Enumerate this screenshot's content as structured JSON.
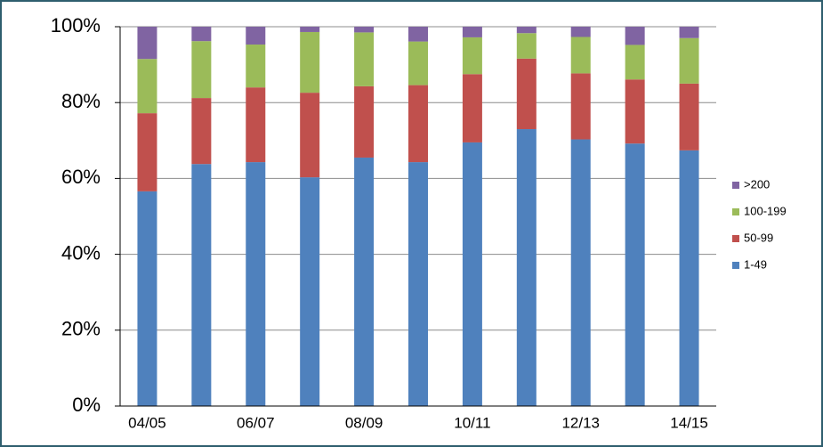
{
  "chart_data": {
    "type": "stacked_bar",
    "categories": [
      "04/05",
      null,
      "06/07",
      null,
      "08/09",
      null,
      "10/11",
      null,
      "12/13",
      null,
      "14/15"
    ],
    "series": [
      {
        "name": "1-49",
        "color": "#4f81bd",
        "values": [
          56.6,
          63.8,
          64.3,
          60.3,
          65.5,
          64.3,
          69.5,
          73,
          70.3,
          69.2,
          67.4
        ]
      },
      {
        "name": "50-99",
        "color": "#c0504d",
        "values": [
          20.6,
          17.4,
          19.7,
          22.3,
          18.8,
          20.3,
          18,
          18.6,
          17.4,
          16.9,
          17.6
        ]
      },
      {
        "name": "100-199",
        "color": "#9bbb59",
        "values": [
          14.3,
          15,
          11.3,
          16,
          14.2,
          11.5,
          9.7,
          6.7,
          9.6,
          9.1,
          12
        ]
      },
      {
        "name": ">200",
        "color": "#8064a2",
        "values": [
          8.5,
          3.8,
          4.7,
          1.4,
          1.5,
          3.9,
          2.8,
          1.7,
          2.7,
          4.8,
          3
        ]
      }
    ],
    "ylim": [
      0,
      100
    ],
    "yticks": [
      {
        "value": 0,
        "label": "0%"
      },
      {
        "value": 20,
        "label": "20%"
      },
      {
        "value": 40,
        "label": "40%"
      },
      {
        "value": 60,
        "label": "60%"
      },
      {
        "value": 80,
        "label": "80%"
      },
      {
        "value": 100,
        "label": "100%"
      }
    ],
    "grid": true,
    "legend": "right"
  }
}
